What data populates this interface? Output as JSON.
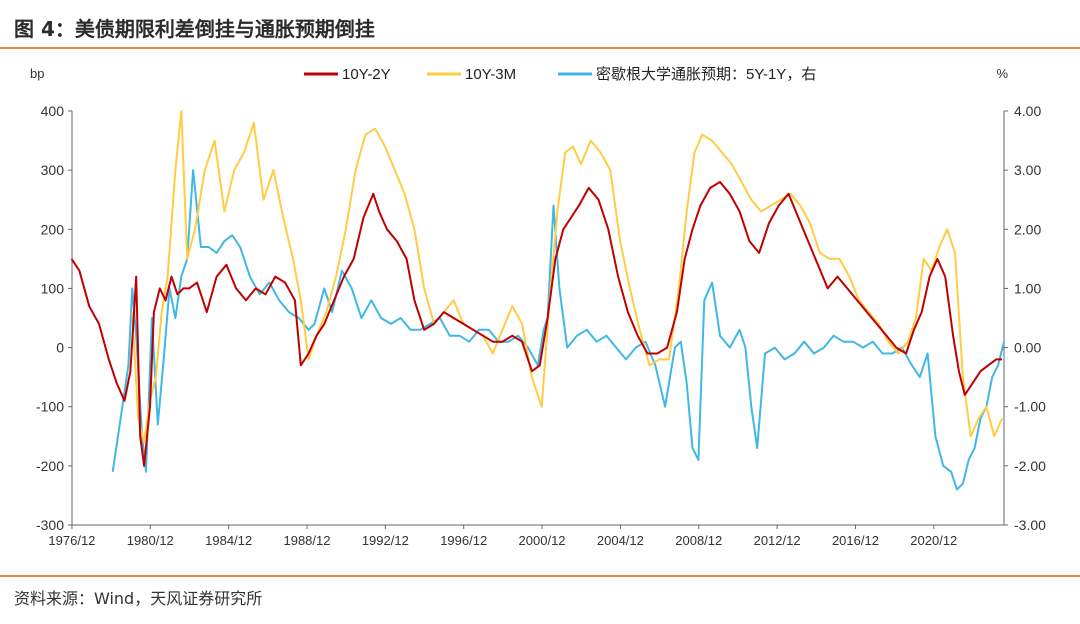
{
  "title": "图 4：美债期限利差倒挂与通胀预期倒挂",
  "source": "资料来源：Wind，天风证券研究所",
  "colors": {
    "rule": "#f0862e",
    "s1": "#c00000",
    "s2": "#ffcc44",
    "s3": "#3fb8e6"
  },
  "chart_data": {
    "type": "line",
    "left_axis_unit": "bp",
    "right_axis_unit": "%",
    "ylim_left": [
      -300,
      400
    ],
    "ylim_right": [
      -3,
      4
    ],
    "yticks_left": [
      "400",
      "300",
      "200",
      "100",
      "0",
      "-100",
      "-200",
      "-300"
    ],
    "yticks_right": [
      "4.00",
      "3.00",
      "2.00",
      "1.00",
      "0.00",
      "-1.00",
      "-2.00",
      "-3.00"
    ],
    "xlim": [
      1976.92,
      2024.5
    ],
    "xticks": [
      "1976/12",
      "1980/12",
      "1984/12",
      "1988/12",
      "1992/12",
      "1996/12",
      "2000/12",
      "2004/12",
      "2008/12",
      "2012/12",
      "2016/12",
      "2020/12"
    ],
    "legend_position": "top",
    "series": [
      {
        "name": "10Y-2Y",
        "axis": "left",
        "x": [
          1976.9,
          1977.3,
          1977.8,
          1978.3,
          1978.8,
          1979.2,
          1979.6,
          1979.9,
          1980.2,
          1980.4,
          1980.6,
          1980.9,
          1981.1,
          1981.4,
          1981.7,
          1982.0,
          1982.3,
          1982.6,
          1982.9,
          1983.3,
          1983.8,
          1984.3,
          1984.8,
          1985.3,
          1985.8,
          1986.3,
          1986.8,
          1987.3,
          1987.8,
          1988.3,
          1988.6,
          1989.0,
          1989.4,
          1989.8,
          1990.3,
          1990.8,
          1991.3,
          1991.8,
          1992.3,
          1992.6,
          1993.0,
          1993.5,
          1994.0,
          1994.4,
          1994.9,
          1995.4,
          1995.9,
          1996.4,
          1996.9,
          1997.4,
          1997.9,
          1998.4,
          1998.9,
          1999.4,
          1999.9,
          2000.4,
          2000.8,
          2001.2,
          2001.6,
          2002.0,
          2002.4,
          2002.8,
          2003.3,
          2003.8,
          2004.3,
          2004.8,
          2005.3,
          2005.8,
          2006.3,
          2006.8,
          2007.3,
          2007.8,
          2008.2,
          2008.6,
          2009.0,
          2009.5,
          2010.0,
          2010.5,
          2011.0,
          2011.5,
          2012.0,
          2012.5,
          2013.0,
          2013.5,
          2014.0,
          2014.5,
          2015.0,
          2015.5,
          2016.0,
          2016.5,
          2017.0,
          2017.5,
          2018.0,
          2018.5,
          2019.0,
          2019.5,
          2019.9,
          2020.3,
          2020.7,
          2021.1,
          2021.5,
          2021.9,
          2022.2,
          2022.5,
          2022.9,
          2023.3,
          2023.7,
          2024.1,
          2024.4
        ],
        "y": [
          150,
          130,
          70,
          40,
          -20,
          -60,
          -90,
          -40,
          120,
          -150,
          -200,
          -100,
          60,
          100,
          80,
          120,
          90,
          100,
          100,
          110,
          60,
          120,
          140,
          100,
          80,
          100,
          90,
          120,
          110,
          80,
          -30,
          -10,
          20,
          40,
          80,
          120,
          150,
          220,
          260,
          230,
          200,
          180,
          150,
          80,
          30,
          40,
          60,
          50,
          40,
          30,
          20,
          10,
          10,
          20,
          10,
          -40,
          -30,
          50,
          150,
          200,
          220,
          240,
          270,
          250,
          200,
          120,
          60,
          20,
          -10,
          -10,
          0,
          60,
          150,
          200,
          240,
          270,
          280,
          260,
          230,
          180,
          160,
          210,
          240,
          260,
          220,
          180,
          140,
          100,
          120,
          100,
          80,
          60,
          40,
          20,
          0,
          -10,
          30,
          60,
          120,
          150,
          120,
          20,
          -40,
          -80,
          -60,
          -40,
          -30,
          -20,
          -20
        ],
        "color": "#c00000"
      },
      {
        "name": "10Y-3M",
        "axis": "left",
        "x": [
          1980.0,
          1980.3,
          1980.6,
          1980.9,
          1981.2,
          1981.5,
          1981.8,
          1982.2,
          1982.5,
          1982.8,
          1983.2,
          1983.7,
          1984.2,
          1984.7,
          1985.2,
          1985.7,
          1986.2,
          1986.7,
          1987.2,
          1987.7,
          1988.2,
          1988.6,
          1989.0,
          1989.4,
          1989.9,
          1990.4,
          1990.9,
          1991.4,
          1991.9,
          1992.4,
          1992.9,
          1993.4,
          1993.9,
          1994.4,
          1994.9,
          1995.4,
          1995.9,
          1996.4,
          1996.9,
          1997.4,
          1997.9,
          1998.4,
          1998.9,
          1999.4,
          1999.9,
          2000.4,
          2000.9,
          2001.3,
          2001.7,
          2002.1,
          2002.5,
          2002.9,
          2003.4,
          2003.9,
          2004.4,
          2004.9,
          2005.4,
          2005.9,
          2006.4,
          2006.9,
          2007.4,
          2007.9,
          2008.3,
          2008.7,
          2009.1,
          2009.6,
          2010.1,
          2010.6,
          2011.1,
          2011.6,
          2012.1,
          2012.6,
          2013.1,
          2013.6,
          2014.1,
          2014.6,
          2015.1,
          2015.6,
          2016.1,
          2016.6,
          2017.1,
          2017.6,
          2018.1,
          2018.6,
          2019.1,
          2019.6,
          2020.0,
          2020.4,
          2020.8,
          2021.2,
          2021.6,
          2022.0,
          2022.4,
          2022.8,
          2023.2,
          2023.6,
          2024.0,
          2024.4
        ],
        "y": [
          60,
          -120,
          -160,
          -90,
          -50,
          60,
          120,
          300,
          400,
          150,
          200,
          300,
          350,
          230,
          300,
          330,
          380,
          250,
          300,
          220,
          150,
          80,
          -20,
          20,
          60,
          120,
          200,
          300,
          360,
          370,
          340,
          300,
          260,
          200,
          100,
          40,
          60,
          80,
          40,
          30,
          20,
          -10,
          30,
          70,
          40,
          -50,
          -100,
          80,
          230,
          330,
          340,
          310,
          350,
          330,
          300,
          180,
          100,
          30,
          -30,
          -20,
          -20,
          100,
          230,
          330,
          360,
          350,
          330,
          310,
          280,
          250,
          230,
          240,
          250,
          260,
          240,
          210,
          160,
          150,
          150,
          120,
          80,
          60,
          40,
          10,
          -10,
          10,
          50,
          150,
          130,
          170,
          200,
          160,
          -50,
          -150,
          -120,
          -100,
          -150,
          -120
        ],
        "color": "#ffcc44"
      },
      {
        "name": "密歇根大学通胀预期：5Y-1Y，右",
        "axis": "right",
        "x": [
          1979.0,
          1979.4,
          1979.8,
          1980.0,
          1980.2,
          1980.5,
          1980.7,
          1981.0,
          1981.3,
          1981.6,
          1981.9,
          1982.2,
          1982.5,
          1982.8,
          1983.1,
          1983.5,
          1983.9,
          1984.3,
          1984.7,
          1985.1,
          1985.5,
          1986.0,
          1986.5,
          1987.0,
          1987.5,
          1988.0,
          1988.5,
          1989.0,
          1989.3,
          1989.8,
          1990.2,
          1990.7,
          1991.2,
          1991.7,
          1992.2,
          1992.7,
          1993.2,
          1993.7,
          1994.2,
          1994.7,
          1995.2,
          1995.7,
          1996.2,
          1996.7,
          1997.2,
          1997.7,
          1998.2,
          1998.7,
          1999.2,
          1999.7,
          2000.2,
          2000.7,
          2001.0,
          2001.2,
          2001.5,
          2001.8,
          2002.2,
          2002.7,
          2003.2,
          2003.7,
          2004.2,
          2004.7,
          2005.2,
          2005.7,
          2006.2,
          2006.7,
          2007.2,
          2007.7,
          2008.0,
          2008.3,
          2008.6,
          2008.9,
          2009.2,
          2009.6,
          2010.0,
          2010.5,
          2011.0,
          2011.3,
          2011.6,
          2011.9,
          2012.3,
          2012.8,
          2013.3,
          2013.8,
          2014.3,
          2014.8,
          2015.3,
          2015.8,
          2016.3,
          2016.8,
          2017.3,
          2017.8,
          2018.3,
          2018.8,
          2019.3,
          2019.8,
          2020.2,
          2020.6,
          2021.0,
          2021.4,
          2021.8,
          2022.1,
          2022.4,
          2022.7,
          2023.0,
          2023.3,
          2023.6,
          2023.9,
          2024.2,
          2024.5
        ],
        "y": [
          -2.1,
          -1.2,
          -0.3,
          1.0,
          0.2,
          -1.5,
          -2.1,
          0.5,
          -1.3,
          -0.2,
          1.0,
          0.5,
          1.2,
          1.5,
          3.0,
          1.7,
          1.7,
          1.6,
          1.8,
          1.9,
          1.7,
          1.2,
          0.9,
          1.1,
          0.8,
          0.6,
          0.5,
          0.3,
          0.4,
          1.0,
          0.6,
          1.3,
          1.0,
          0.5,
          0.8,
          0.5,
          0.4,
          0.5,
          0.3,
          0.3,
          0.4,
          0.5,
          0.2,
          0.2,
          0.1,
          0.3,
          0.3,
          0.1,
          0.1,
          0.2,
          0.0,
          -0.3,
          0.3,
          0.5,
          2.4,
          1.0,
          0.0,
          0.2,
          0.3,
          0.1,
          0.2,
          0.0,
          -0.2,
          0.0,
          0.1,
          -0.3,
          -1.0,
          0.0,
          0.1,
          -0.6,
          -1.7,
          -1.9,
          0.8,
          1.1,
          0.2,
          0.0,
          0.3,
          0.0,
          -1.0,
          -1.7,
          -0.1,
          0.0,
          -0.2,
          -0.1,
          0.1,
          -0.1,
          0.0,
          0.2,
          0.1,
          0.1,
          0.0,
          0.1,
          -0.1,
          -0.1,
          0.0,
          -0.3,
          -0.5,
          -0.1,
          -1.5,
          -2.0,
          -2.1,
          -2.4,
          -2.3,
          -1.9,
          -1.7,
          -1.2,
          -1.0,
          -0.5,
          -0.3,
          0.1
        ],
        "color": "#3fb8e6"
      }
    ]
  }
}
